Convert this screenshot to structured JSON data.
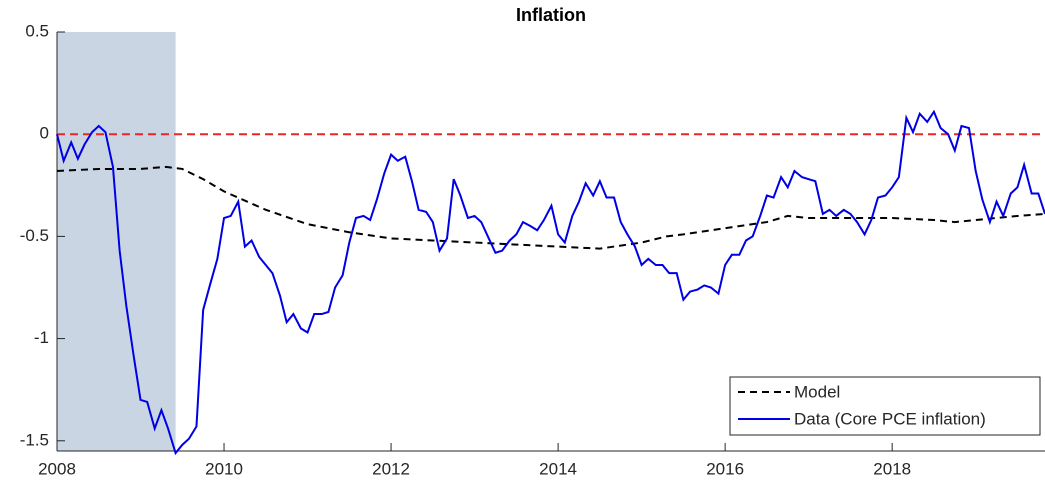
{
  "chart_data": {
    "type": "line",
    "title": "Inflation",
    "xlim": [
      2008,
      2019.83
    ],
    "xticks": [
      2008,
      2010,
      2012,
      2014,
      2016,
      2018
    ],
    "ylim": [
      -1.55,
      0.5
    ],
    "yticks": [
      -1.5,
      -1,
      -0.5,
      0,
      0.5
    ],
    "shaded_region": {
      "x": [
        2008,
        2009.42
      ],
      "color": "#c9d5e3"
    },
    "reference_line": {
      "value": 0,
      "color": "#e8262a"
    },
    "legend": "lower right",
    "series": [
      {
        "name": "Model",
        "color": "#000000",
        "dashed": true,
        "x": [
          2008,
          2008.5,
          2009,
          2009.3,
          2009.5,
          2009.75,
          2010,
          2010.5,
          2011,
          2011.5,
          2012,
          2012.5,
          2013,
          2013.5,
          2014,
          2014.5,
          2015,
          2015.3,
          2015.5,
          2016,
          2016.5,
          2016.75,
          2017,
          2017.5,
          2018,
          2018.5,
          2018.75,
          2019,
          2019.5,
          2019.83
        ],
        "values": [
          -0.18,
          -0.17,
          -0.17,
          -0.16,
          -0.17,
          -0.22,
          -0.28,
          -0.37,
          -0.44,
          -0.48,
          -0.51,
          -0.52,
          -0.53,
          -0.54,
          -0.55,
          -0.56,
          -0.53,
          -0.5,
          -0.49,
          -0.46,
          -0.43,
          -0.4,
          -0.41,
          -0.41,
          -0.41,
          -0.42,
          -0.43,
          -0.42,
          -0.4,
          -0.39
        ]
      },
      {
        "name": "Data (Core PCE inflation)",
        "color": "#0000e6",
        "dashed": false,
        "x": [
          2008,
          2008.08,
          2008.17,
          2008.25,
          2008.33,
          2008.42,
          2008.5,
          2008.58,
          2008.67,
          2008.75,
          2008.83,
          2008.92,
          2009,
          2009.08,
          2009.17,
          2009.25,
          2009.33,
          2009.42,
          2009.5,
          2009.58,
          2009.67,
          2009.75,
          2009.83,
          2009.92,
          2010,
          2010.08,
          2010.17,
          2010.25,
          2010.33,
          2010.42,
          2010.5,
          2010.58,
          2010.67,
          2010.75,
          2010.83,
          2010.92,
          2011,
          2011.08,
          2011.17,
          2011.25,
          2011.33,
          2011.42,
          2011.5,
          2011.58,
          2011.67,
          2011.75,
          2011.83,
          2011.92,
          2012,
          2012.08,
          2012.17,
          2012.25,
          2012.33,
          2012.42,
          2012.5,
          2012.58,
          2012.67,
          2012.75,
          2012.83,
          2012.92,
          2013,
          2013.08,
          2013.17,
          2013.25,
          2013.33,
          2013.42,
          2013.5,
          2013.58,
          2013.67,
          2013.75,
          2013.83,
          2013.92,
          2014,
          2014.08,
          2014.17,
          2014.25,
          2014.33,
          2014.42,
          2014.5,
          2014.58,
          2014.67,
          2014.75,
          2014.83,
          2014.92,
          2015,
          2015.08,
          2015.17,
          2015.25,
          2015.33,
          2015.42,
          2015.5,
          2015.58,
          2015.67,
          2015.75,
          2015.83,
          2015.92,
          2016,
          2016.08,
          2016.17,
          2016.25,
          2016.33,
          2016.42,
          2016.5,
          2016.58,
          2016.67,
          2016.75,
          2016.83,
          2016.92,
          2017,
          2017.08,
          2017.17,
          2017.25,
          2017.33,
          2017.42,
          2017.5,
          2017.58,
          2017.67,
          2017.75,
          2017.83,
          2017.92,
          2018,
          2018.08,
          2018.17,
          2018.25,
          2018.33,
          2018.42,
          2018.5,
          2018.58,
          2018.67,
          2018.75,
          2018.83,
          2018.92,
          2019,
          2019.08,
          2019.17,
          2019.25,
          2019.33,
          2019.42,
          2019.5,
          2019.58,
          2019.67,
          2019.75,
          2019.83
        ],
        "values": [
          0,
          -0.13,
          -0.04,
          -0.12,
          -0.05,
          0.01,
          0.04,
          0.01,
          -0.16,
          -0.57,
          -0.84,
          -1.09,
          -1.3,
          -1.31,
          -1.44,
          -1.35,
          -1.44,
          -1.56,
          -1.52,
          -1.49,
          -1.43,
          -0.86,
          -0.74,
          -0.61,
          -0.41,
          -0.4,
          -0.33,
          -0.55,
          -0.52,
          -0.6,
          -0.64,
          -0.68,
          -0.79,
          -0.92,
          -0.88,
          -0.95,
          -0.97,
          -0.88,
          -0.88,
          -0.87,
          -0.75,
          -0.69,
          -0.53,
          -0.41,
          -0.4,
          -0.42,
          -0.32,
          -0.19,
          -0.1,
          -0.13,
          -0.11,
          -0.23,
          -0.37,
          -0.38,
          -0.43,
          -0.57,
          -0.51,
          -0.22,
          -0.3,
          -0.41,
          -0.4,
          -0.43,
          -0.51,
          -0.58,
          -0.57,
          -0.52,
          -0.49,
          -0.43,
          -0.45,
          -0.47,
          -0.42,
          -0.35,
          -0.49,
          -0.53,
          -0.4,
          -0.33,
          -0.24,
          -0.3,
          -0.23,
          -0.31,
          -0.31,
          -0.43,
          -0.49,
          -0.55,
          -0.64,
          -0.61,
          -0.64,
          -0.64,
          -0.68,
          -0.68,
          -0.81,
          -0.77,
          -0.76,
          -0.74,
          -0.75,
          -0.78,
          -0.64,
          -0.59,
          -0.59,
          -0.52,
          -0.5,
          -0.4,
          -0.3,
          -0.31,
          -0.21,
          -0.26,
          -0.18,
          -0.21,
          -0.22,
          -0.23,
          -0.39,
          -0.37,
          -0.4,
          -0.37,
          -0.39,
          -0.43,
          -0.49,
          -0.42,
          -0.31,
          -0.3,
          -0.26,
          -0.21,
          0.08,
          0.01,
          0.1,
          0.06,
          0.11,
          0.03,
          0,
          -0.08,
          0.04,
          0.03,
          -0.18,
          -0.32,
          -0.43,
          -0.33,
          -0.4,
          -0.29,
          -0.26,
          -0.15,
          -0.29,
          -0.29,
          -0.39
        ]
      }
    ]
  }
}
